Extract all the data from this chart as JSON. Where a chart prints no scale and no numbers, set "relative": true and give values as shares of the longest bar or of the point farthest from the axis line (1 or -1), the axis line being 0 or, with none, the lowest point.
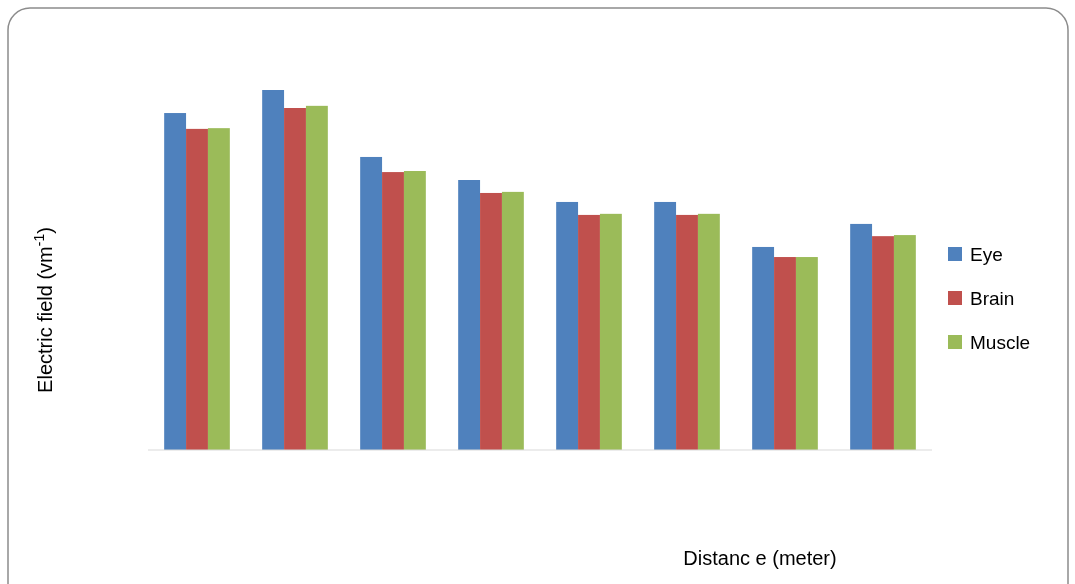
{
  "chart_data": {
    "type": "bar",
    "relative": true,
    "xlabel": "Distanc e (meter)",
    "ylabel": "Electric field (vm$^{-1}$)",
    "categories": [
      null,
      null,
      null,
      null,
      null,
      null,
      null,
      null
    ],
    "legend": "right",
    "series": [
      {
        "name": "Eye",
        "color": "#4f81bd",
        "values": [
          0.936,
          1,
          0.814,
          0.75,
          0.689,
          0.689,
          0.564,
          0.628
        ]
      },
      {
        "name": "Brain",
        "color": "#c0504d",
        "values": [
          0.892,
          0.95,
          0.772,
          0.714,
          0.653,
          0.653,
          0.536,
          0.594
        ]
      },
      {
        "name": "Muscle",
        "color": "#9bbb59",
        "values": [
          0.894,
          0.956,
          0.775,
          0.717,
          0.656,
          0.656,
          0.536,
          0.597
        ]
      }
    ]
  }
}
